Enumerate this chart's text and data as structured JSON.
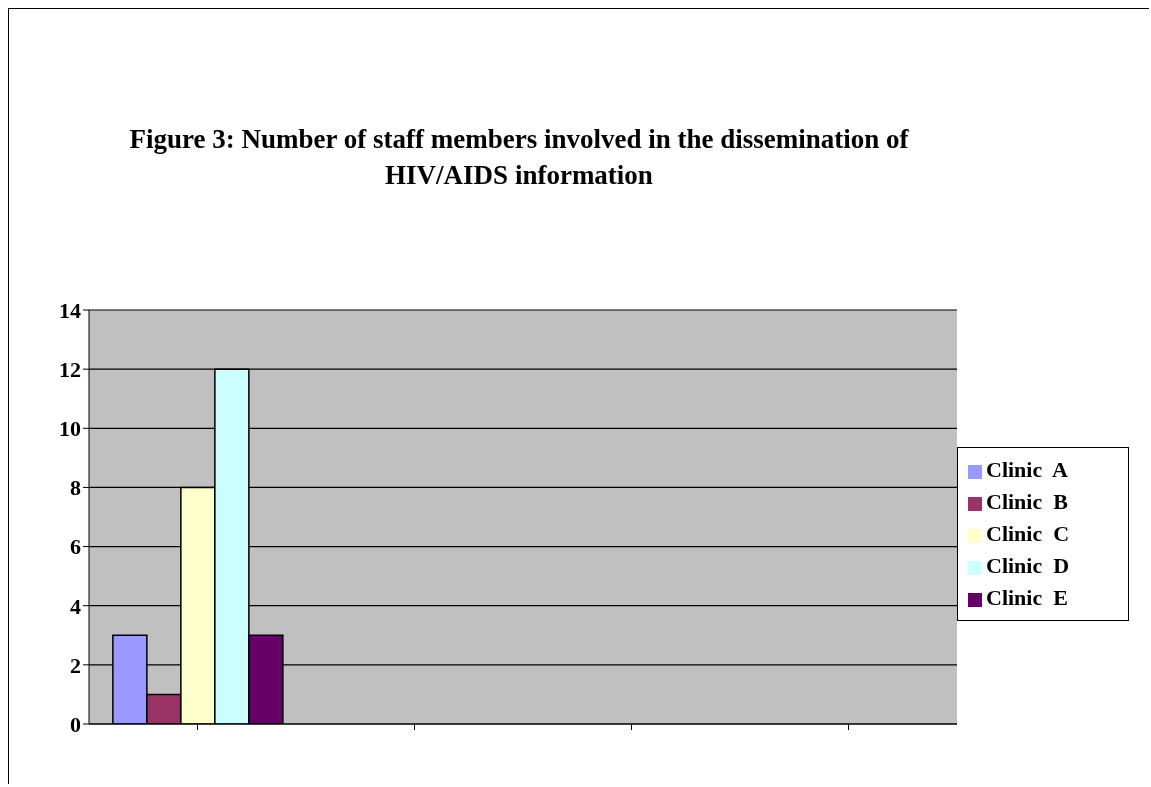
{
  "chart_data": {
    "type": "bar",
    "title": "Figure 3: Number of staff members involved in the dissemination of HIV/AIDS information",
    "categories": [
      null,
      null,
      null,
      null
    ],
    "series": [
      {
        "name": "Clinic  A",
        "color": "#9999ff",
        "values": [
          3,
          null,
          null,
          null
        ]
      },
      {
        "name": "Clinic  B",
        "color": "#993366",
        "values": [
          1,
          null,
          null,
          null
        ]
      },
      {
        "name": "Clinic  C",
        "color": "#ffffcc",
        "values": [
          8,
          null,
          null,
          null
        ]
      },
      {
        "name": "Clinic  D",
        "color": "#ccffff",
        "values": [
          12,
          null,
          null,
          null
        ]
      },
      {
        "name": "Clinic  E",
        "color": "#660066",
        "values": [
          3,
          null,
          null,
          null
        ]
      }
    ],
    "ylim": [
      0,
      14
    ],
    "yticks": [
      0,
      2,
      4,
      6,
      8,
      10,
      12,
      14
    ],
    "grid": "y",
    "legend": "right"
  }
}
